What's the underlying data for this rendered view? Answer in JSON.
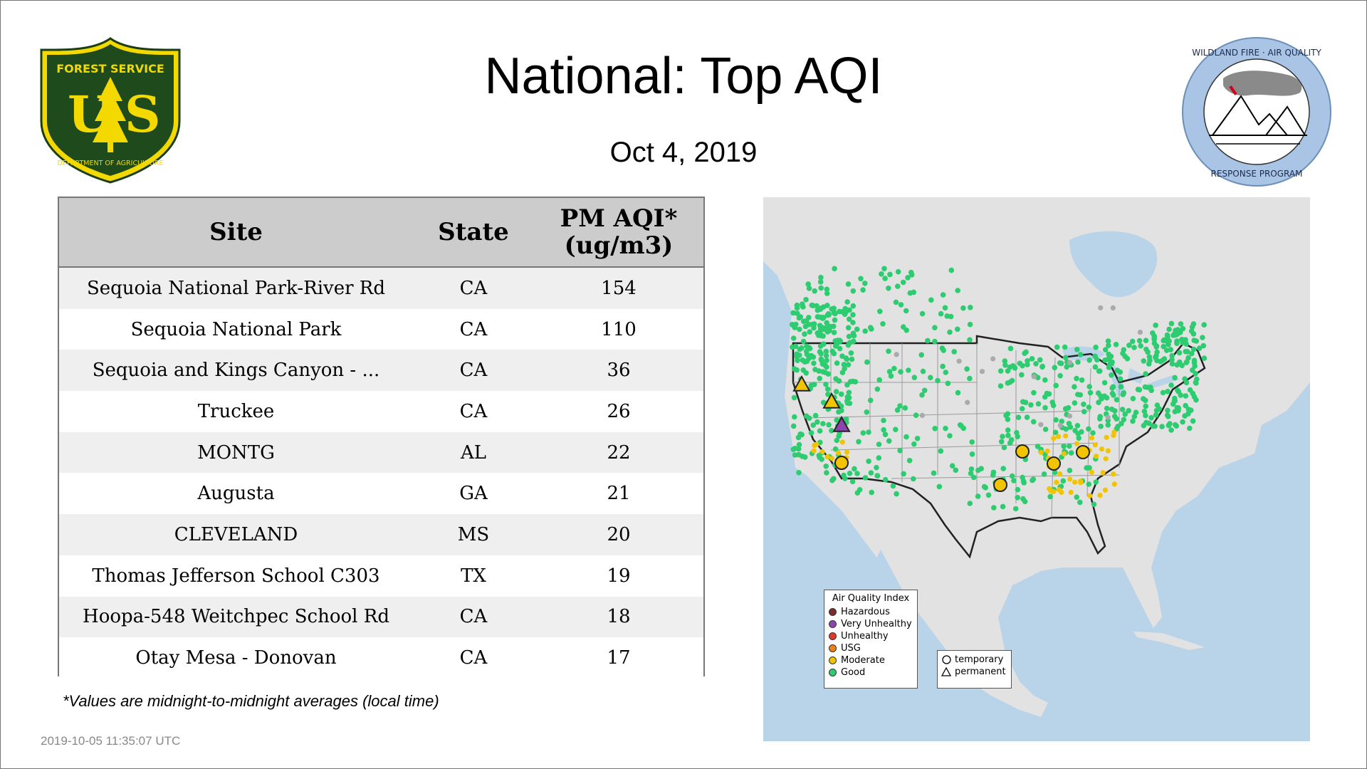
{
  "title": "National: Top AQI",
  "subtitle": "Oct  4, 2019",
  "logos": {
    "left": {
      "name": "usfs-shield-logo",
      "ring_text": "FOREST SERVICE",
      "letters": "U S",
      "bottom_text": "DEPARTMENT OF AGRICULTURE"
    },
    "right": {
      "name": "wildland-fire-air-quality-logo",
      "top_text": "WILDLAND FIRE · AIR QUALITY",
      "bottom_text": "RESPONSE PROGRAM"
    }
  },
  "table": {
    "headers": [
      "Site",
      "State",
      "PM AQI*",
      "(ug/m3)"
    ],
    "rows": [
      {
        "site": "Sequoia National Park-River Rd",
        "state": "CA",
        "aqi": "154"
      },
      {
        "site": "Sequoia National Park",
        "state": "CA",
        "aqi": "110"
      },
      {
        "site": "Sequoia and Kings Canyon - ...",
        "state": "CA",
        "aqi": "36"
      },
      {
        "site": "Truckee",
        "state": "CA",
        "aqi": "26"
      },
      {
        "site": "MONTG",
        "state": "AL",
        "aqi": "22"
      },
      {
        "site": "Augusta",
        "state": "GA",
        "aqi": "21"
      },
      {
        "site": "CLEVELAND",
        "state": "MS",
        "aqi": "20"
      },
      {
        "site": "Thomas Jefferson School C303",
        "state": "TX",
        "aqi": "19"
      },
      {
        "site": "Hoopa-548 Weitchpec School Rd",
        "state": "CA",
        "aqi": "18"
      },
      {
        "site": "Otay Mesa - Donovan",
        "state": "CA",
        "aqi": "17"
      }
    ]
  },
  "footnote": "*Values are midnight-to-midnight averages (local time)",
  "timestamp": "2019-10-05 11:35:07 UTC",
  "map": {
    "legend_title": "Air Quality Index",
    "categories": [
      {
        "label": "Hazardous",
        "color": "#7e2b2b"
      },
      {
        "label": "Very Unhealthy",
        "color": "#8e44ad"
      },
      {
        "label": "Unhealthy",
        "color": "#e0392b"
      },
      {
        "label": "USG",
        "color": "#f0801a"
      },
      {
        "label": "Moderate",
        "color": "#f2c400"
      },
      {
        "label": "Good",
        "color": "#2ecc71"
      }
    ],
    "monitor_types": [
      {
        "label": "temporary",
        "shape": "circle"
      },
      {
        "label": "permanent",
        "shape": "triangle"
      }
    ],
    "colors": {
      "land": "#e2e2e2",
      "water": "#b9d3e8",
      "good": "#2ecc71",
      "moderate": "#f2c400",
      "very_unhealthy": "#8e44ad",
      "missing": "#aaaaaa"
    }
  }
}
